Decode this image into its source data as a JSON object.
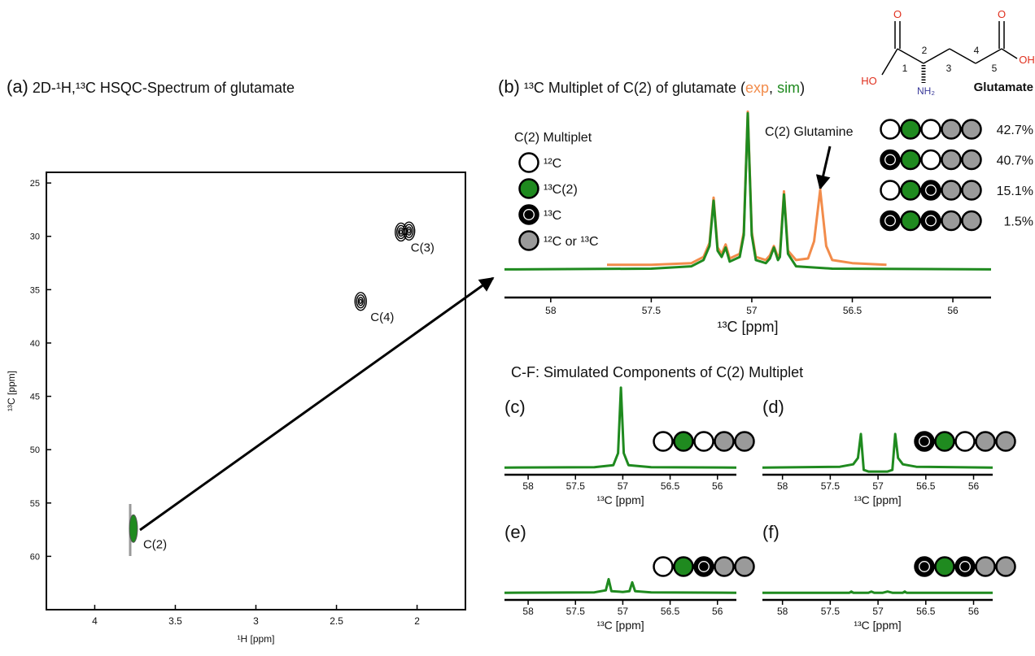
{
  "structure": {
    "name": "Glutamate",
    "atoms": [
      "O",
      "HO",
      "O",
      "OH",
      "NH₂"
    ],
    "numbers": [
      "1",
      "2",
      "3",
      "4",
      "5"
    ]
  },
  "heading": "C-F: Simulated Components of C(2) Multiplet",
  "chart_data": [
    {
      "type": "scatter",
      "panel": "(a)",
      "title": "2D-¹H,¹³C HSQC-Spectrum of glutamate",
      "x_label": "¹H [ppm]",
      "y_label": "¹³C [ppm]",
      "xlim": [
        4.3,
        1.7
      ],
      "ylim": [
        24,
        65
      ],
      "xticks": [
        4,
        3.5,
        3,
        2.5,
        2
      ],
      "yticks": [
        25,
        30,
        35,
        40,
        45,
        50,
        55,
        60
      ],
      "series": [
        {
          "name": "C(2)",
          "color": "#1f8a1f",
          "x": [
            3.76
          ],
          "values": [
            57.4
          ]
        },
        {
          "name": "C(4)",
          "color": "#000000",
          "x": [
            2.35
          ],
          "values": [
            36.1
          ]
        },
        {
          "name": "C(3)",
          "color": "#000000",
          "x": [
            2.1,
            2.05
          ],
          "values": [
            29.6,
            29.5
          ]
        }
      ]
    },
    {
      "type": "line",
      "panel": "(b)",
      "title": "¹³C Multiplet of C(2) of glutamate",
      "title_punctuation": [
        "(",
        ", ",
        ")"
      ],
      "x_label": "¹³C [ppm]",
      "xlim": [
        58.23,
        55.81
      ],
      "ylim": [
        -18,
        108
      ],
      "xticks": [
        58,
        57.5,
        57,
        56.5,
        56
      ],
      "annotation": "C(2) Glutamine",
      "series": [
        {
          "name": "exp",
          "color": "#f28c4b",
          "x": [
            57.72,
            57.5,
            57.3,
            57.24,
            57.21,
            57.19,
            57.17,
            57.15,
            57.13,
            57.11,
            57.06,
            57.04,
            57.02,
            57.0,
            56.98,
            56.93,
            56.91,
            56.89,
            56.87,
            56.86,
            56.84,
            56.82,
            56.78,
            56.72,
            56.69,
            56.66,
            56.63,
            56.6,
            56.5,
            56.33
          ],
          "values": [
            3,
            3,
            4,
            8,
            17,
            46,
            14,
            10,
            16,
            7,
            10,
            24,
            101,
            24,
            8,
            6,
            9,
            15,
            8,
            10,
            50,
            12,
            6,
            7,
            18,
            51,
            15,
            6,
            4,
            3
          ]
        },
        {
          "name": "sim",
          "color": "#1f8a1f",
          "x": [
            58.23,
            57.5,
            57.3,
            57.24,
            57.21,
            57.19,
            57.17,
            57.15,
            57.13,
            57.11,
            57.06,
            57.04,
            57.02,
            57.0,
            56.98,
            56.93,
            56.91,
            56.89,
            56.87,
            56.86,
            56.84,
            56.82,
            56.78,
            56.6,
            55.81
          ],
          "values": [
            0,
            0.5,
            2,
            6,
            15,
            44,
            12,
            8,
            14,
            5,
            8,
            22,
            100,
            22,
            6,
            4,
            7,
            14,
            6,
            8,
            48,
            10,
            2,
            0.5,
            0
          ]
        }
      ],
      "legend": {
        "title": "C(2) Multiplet",
        "items": [
          {
            "label": "¹²C",
            "color": "#ffffff"
          },
          {
            "label": "¹³C(2)",
            "color": "#1f8a1f"
          },
          {
            "label": "¹³C",
            "color": "#000000"
          },
          {
            "label": "¹²C or ¹³C",
            "color": "#9a9a9a"
          }
        ]
      },
      "isotopomers": {
        "patterns": [
          [
            "#ffffff",
            "#1f8a1f",
            "#ffffff",
            "#9a9a9a",
            "#9a9a9a"
          ],
          [
            "#000000",
            "#1f8a1f",
            "#ffffff",
            "#9a9a9a",
            "#9a9a9a"
          ],
          [
            "#ffffff",
            "#1f8a1f",
            "#000000",
            "#9a9a9a",
            "#9a9a9a"
          ],
          [
            "#000000",
            "#1f8a1f",
            "#000000",
            "#9a9a9a",
            "#9a9a9a"
          ]
        ],
        "labels": [
          "42.7%",
          "40.7%",
          "15.1%",
          "1.5%"
        ]
      }
    },
    {
      "type": "line",
      "panel": "(c)",
      "x_label": "¹³C [ppm]",
      "xlim": [
        58.25,
        55.8
      ],
      "ylim": [
        -9,
        105
      ],
      "xticks": [
        58,
        57.5,
        57,
        56.5,
        56
      ],
      "pattern": [
        "#ffffff",
        "#1f8a1f",
        "#ffffff",
        "#9a9a9a",
        "#9a9a9a"
      ],
      "series": [
        {
          "color": "#1f8a1f",
          "x": [
            58.25,
            57.3,
            57.1,
            57.05,
            57.02,
            56.99,
            56.94,
            56.7,
            55.8
          ],
          "values": [
            0,
            0.5,
            3,
            18,
            100,
            18,
            3,
            0.5,
            0
          ]
        }
      ]
    },
    {
      "type": "line",
      "panel": "(d)",
      "x_label": "¹³C [ppm]",
      "xlim": [
        58.21,
        55.8
      ],
      "ylim": [
        -9,
        105
      ],
      "xticks": [
        58,
        57.5,
        57,
        56.5,
        56
      ],
      "pattern": [
        "#000000",
        "#1f8a1f",
        "#ffffff",
        "#9a9a9a",
        "#9a9a9a"
      ],
      "series": [
        {
          "color": "#1f8a1f",
          "x": [
            58.21,
            57.4,
            57.26,
            57.21,
            57.18,
            57.15,
            57.1,
            57.0,
            56.9,
            56.85,
            56.82,
            56.79,
            56.74,
            56.6,
            55.8
          ],
          "values": [
            0,
            1,
            4,
            12,
            42,
            -3,
            -5,
            -5,
            -5,
            -3,
            42,
            12,
            4,
            1,
            0
          ]
        }
      ]
    },
    {
      "type": "line",
      "panel": "(e)",
      "x_label": "¹³C [ppm]",
      "xlim": [
        58.25,
        55.8
      ],
      "ylim": [
        -9,
        105
      ],
      "xticks": [
        58,
        57.5,
        57,
        56.5,
        56
      ],
      "pattern": [
        "#ffffff",
        "#1f8a1f",
        "#000000",
        "#9a9a9a",
        "#9a9a9a"
      ],
      "series": [
        {
          "color": "#1f8a1f",
          "x": [
            58.25,
            57.3,
            57.18,
            57.15,
            57.12,
            57.0,
            56.93,
            56.9,
            56.87,
            56.7,
            55.8
          ],
          "values": [
            0,
            0.5,
            3,
            17,
            2,
            1,
            2,
            13,
            2,
            0.5,
            0
          ]
        }
      ]
    },
    {
      "type": "line",
      "panel": "(f)",
      "x_label": "¹³C [ppm]",
      "xlim": [
        58.21,
        55.8
      ],
      "ylim": [
        -9,
        105
      ],
      "xticks": [
        58,
        57.5,
        57,
        56.5,
        56
      ],
      "pattern": [
        "#000000",
        "#1f8a1f",
        "#000000",
        "#9a9a9a",
        "#9a9a9a"
      ],
      "series": [
        {
          "color": "#1f8a1f",
          "x": [
            58.21,
            57.3,
            57.28,
            57.26,
            57.1,
            57.07,
            57.04,
            56.95,
            56.9,
            56.85,
            56.74,
            56.72,
            56.7,
            55.8
          ],
          "values": [
            0,
            0,
            1.5,
            0,
            0,
            1.5,
            0,
            0,
            1.5,
            0,
            0,
            1.5,
            0,
            0
          ]
        }
      ]
    }
  ]
}
